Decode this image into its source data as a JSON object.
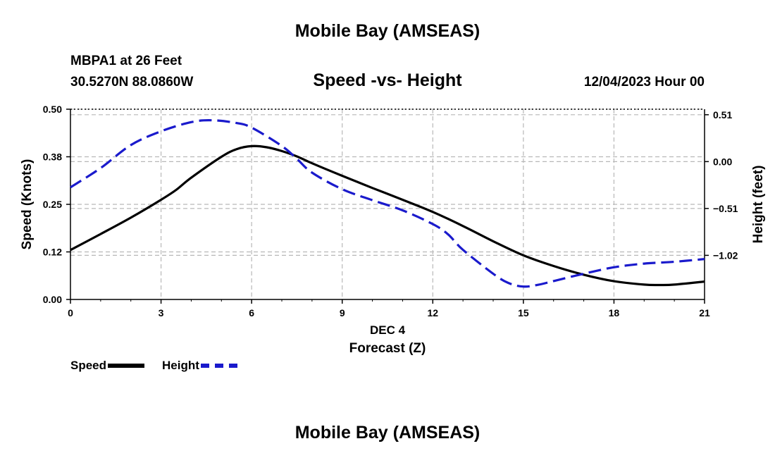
{
  "header": {
    "title": "Mobile Bay (AMSEAS)",
    "station": "MBPA1 at 26 Feet",
    "coords": "30.5270N  88.0860W",
    "subtitle": "Speed -vs- Height",
    "datetime": "12/04/2023 Hour 00"
  },
  "footer": {
    "title": "Mobile Bay (AMSEAS)"
  },
  "legend": {
    "speed_label": "Speed",
    "height_label": "Height"
  },
  "colors": {
    "speed": "#000000",
    "height": "#1a1acc",
    "grid": "#b8b8b8"
  },
  "chart_data": {
    "type": "line",
    "title": "Speed -vs- Height",
    "xlabel": "Forecast (Z)",
    "xlabel_day": "DEC 4",
    "ylabel": "Speed (Knots)",
    "y2label": "Height (feet)",
    "xlim": [
      0,
      21
    ],
    "ylim": [
      0,
      0.5
    ],
    "y2lim": [
      -1.5,
      0.57
    ],
    "x_ticks": [
      0,
      3,
      6,
      9,
      12,
      15,
      18,
      21
    ],
    "x_tick_labels": [
      "0",
      "3",
      "6",
      "9",
      "12",
      "15",
      "18",
      "21"
    ],
    "y_ticks": [
      0,
      0.125,
      0.25,
      0.375,
      0.5
    ],
    "y_tick_labels": [
      "0.00",
      "0.12",
      "0.25",
      "0.38",
      "0.50"
    ],
    "y2_ticks": [
      -1.02,
      -0.51,
      0.0,
      0.51
    ],
    "y2_tick_labels": [
      "−1.02",
      "−0.51",
      "0.00",
      "0.51"
    ],
    "grid": true,
    "series": [
      {
        "name": "Speed",
        "axis": "left",
        "style": "solid",
        "x": [
          0,
          1,
          2,
          3,
          3.5,
          4,
          5,
          5.5,
          6,
          6.5,
          7,
          7.5,
          8,
          9,
          10,
          11,
          12,
          13,
          14,
          15,
          16,
          17,
          18,
          19,
          19.5,
          20,
          21
        ],
        "values": [
          0.13,
          0.172,
          0.215,
          0.262,
          0.288,
          0.32,
          0.375,
          0.395,
          0.403,
          0.4,
          0.39,
          0.376,
          0.358,
          0.325,
          0.293,
          0.262,
          0.23,
          0.193,
          0.153,
          0.116,
          0.088,
          0.065,
          0.048,
          0.039,
          0.038,
          0.039,
          0.047
        ]
      },
      {
        "name": "Height",
        "axis": "right",
        "style": "dashed",
        "x": [
          0,
          1,
          2,
          3,
          4,
          4.7,
          5.5,
          6,
          7,
          7.5,
          8,
          9,
          10,
          11,
          12,
          12.5,
          13,
          14,
          14.5,
          15,
          15.5,
          16,
          17,
          18,
          19,
          20,
          21
        ],
        "values": [
          -0.28,
          -0.07,
          0.18,
          0.33,
          0.43,
          0.45,
          0.42,
          0.37,
          0.17,
          0.03,
          -0.12,
          -0.3,
          -0.42,
          -0.53,
          -0.68,
          -0.79,
          -0.96,
          -1.22,
          -1.32,
          -1.36,
          -1.34,
          -1.3,
          -1.22,
          -1.15,
          -1.11,
          -1.09,
          -1.06
        ]
      }
    ]
  }
}
